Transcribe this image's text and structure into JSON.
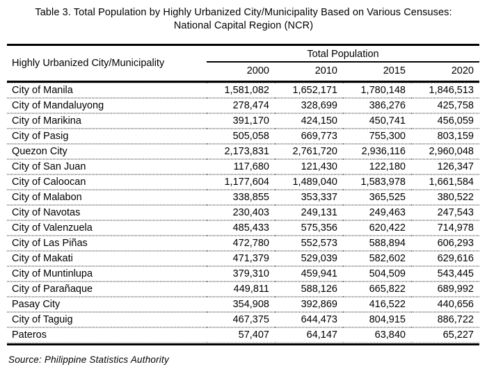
{
  "title": "Table 3. Total Population by Highly Urbanized City/Municipality Based on Various Censuses: National Capital Region (NCR)",
  "source": "Source: Philippine Statistics Authority",
  "colors": {
    "background": "#ffffff",
    "text": "#000000",
    "strong_rule": "#000000",
    "dotted_rule": "#8f8f8f"
  },
  "table": {
    "row_header": "Highly Urbanized City/Municipality",
    "group_header": "Total Population",
    "year_columns": [
      "2000",
      "2010",
      "2015",
      "2020"
    ],
    "rows": [
      {
        "name": "City of Manila",
        "values": [
          "1,581,082",
          "1,652,171",
          "1,780,148",
          "1,846,513"
        ]
      },
      {
        "name": "City of Mandaluyong",
        "values": [
          "278,474",
          "328,699",
          "386,276",
          "425,758"
        ]
      },
      {
        "name": "City of Marikina",
        "values": [
          "391,170",
          "424,150",
          "450,741",
          "456,059"
        ]
      },
      {
        "name": "City of Pasig",
        "values": [
          "505,058",
          "669,773",
          "755,300",
          "803,159"
        ]
      },
      {
        "name": "Quezon City",
        "values": [
          "2,173,831",
          "2,761,720",
          "2,936,116",
          "2,960,048"
        ]
      },
      {
        "name": "City of San Juan",
        "values": [
          "117,680",
          "121,430",
          "122,180",
          "126,347"
        ]
      },
      {
        "name": "City of Caloocan",
        "values": [
          "1,177,604",
          "1,489,040",
          "1,583,978",
          "1,661,584"
        ]
      },
      {
        "name": "City of Malabon",
        "values": [
          "338,855",
          "353,337",
          "365,525",
          "380,522"
        ]
      },
      {
        "name": "City of Navotas",
        "values": [
          "230,403",
          "249,131",
          "249,463",
          "247,543"
        ]
      },
      {
        "name": "City of Valenzuela",
        "values": [
          "485,433",
          "575,356",
          "620,422",
          "714,978"
        ]
      },
      {
        "name": "City of Las Piñas",
        "values": [
          "472,780",
          "552,573",
          "588,894",
          "606,293"
        ]
      },
      {
        "name": "City of Makati",
        "values": [
          "471,379",
          "529,039",
          "582,602",
          "629,616"
        ]
      },
      {
        "name": "City of Muntinlupa",
        "values": [
          "379,310",
          "459,941",
          "504,509",
          "543,445"
        ]
      },
      {
        "name": "City of Parañaque",
        "values": [
          "449,811",
          "588,126",
          "665,822",
          "689,992"
        ]
      },
      {
        "name": "Pasay City",
        "values": [
          "354,908",
          "392,869",
          "416,522",
          "440,656"
        ]
      },
      {
        "name": "City of Taguig",
        "values": [
          "467,375",
          "644,473",
          "804,915",
          "886,722"
        ]
      },
      {
        "name": "Pateros",
        "values": [
          "57,407",
          "64,147",
          "63,840",
          "65,227"
        ]
      }
    ]
  }
}
